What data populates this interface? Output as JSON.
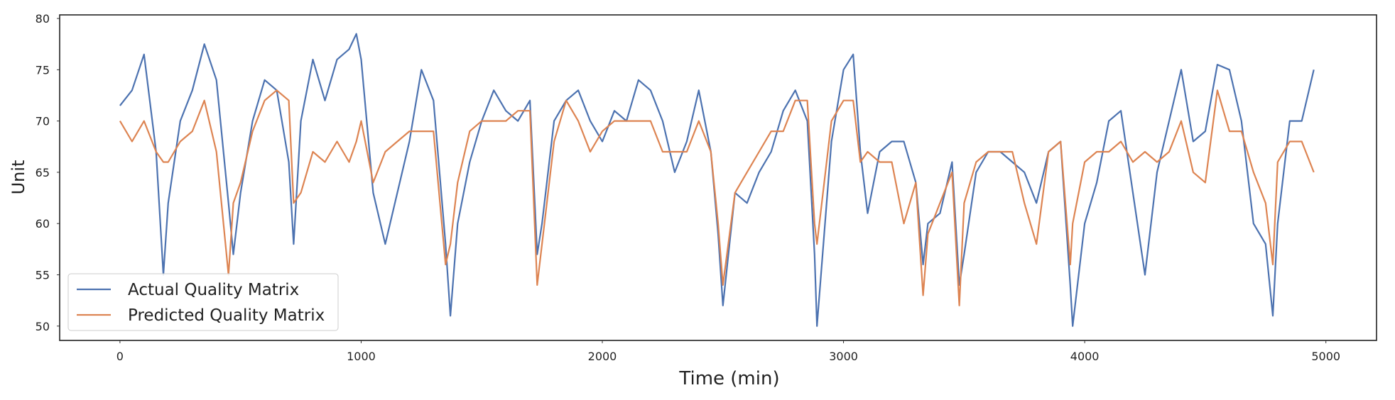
{
  "chart_data": {
    "type": "line",
    "x_label": "Time (min)",
    "y_label": "Unit",
    "x": [
      0,
      50,
      100,
      150,
      180,
      200,
      250,
      300,
      350,
      400,
      450,
      470,
      500,
      550,
      600,
      650,
      700,
      720,
      750,
      800,
      850,
      900,
      950,
      980,
      1000,
      1050,
      1100,
      1150,
      1200,
      1250,
      1300,
      1350,
      1370,
      1400,
      1450,
      1500,
      1550,
      1600,
      1650,
      1700,
      1730,
      1750,
      1800,
      1850,
      1900,
      1950,
      2000,
      2050,
      2100,
      2150,
      2200,
      2250,
      2300,
      2350,
      2400,
      2450,
      2480,
      2500,
      2550,
      2600,
      2650,
      2700,
      2750,
      2800,
      2850,
      2880,
      2890,
      2950,
      3000,
      3040,
      3070,
      3100,
      3150,
      3200,
      3250,
      3300,
      3330,
      3350,
      3400,
      3450,
      3480,
      3500,
      3550,
      3600,
      3650,
      3700,
      3750,
      3800,
      3850,
      3900,
      3940,
      3950,
      4000,
      4050,
      4100,
      4150,
      4200,
      4250,
      4300,
      4350,
      4400,
      4450,
      4500,
      4550,
      4600,
      4650,
      4700,
      4750,
      4780,
      4800,
      4850,
      4900,
      4950
    ],
    "series": [
      {
        "name": "Actual Quality Matrix",
        "color": "#4c72b0",
        "values": [
          71.5,
          73,
          76.5,
          67,
          55,
          62,
          70,
          73,
          77.5,
          74,
          62,
          57,
          63,
          70,
          74,
          73,
          66,
          58,
          70,
          76,
          72,
          76,
          77,
          78.5,
          76,
          63,
          58,
          63,
          68,
          75,
          72,
          58,
          51,
          60,
          66,
          70,
          73,
          71,
          70,
          72,
          57,
          60,
          70,
          72,
          73,
          70,
          68,
          71,
          70,
          74,
          73,
          70,
          65,
          68,
          73,
          67,
          59,
          52,
          63,
          62,
          65,
          67,
          71,
          73,
          70,
          57,
          50,
          68,
          75,
          76.5,
          67,
          61,
          67,
          68,
          68,
          64,
          56,
          60,
          61,
          66,
          54,
          57,
          65,
          67,
          67,
          66,
          65,
          62,
          67,
          68,
          54,
          50,
          60,
          64,
          70,
          71,
          63,
          55,
          65,
          70,
          75,
          68,
          69,
          75.5,
          75,
          70,
          60,
          58,
          51,
          60,
          70,
          70,
          75
        ]
      },
      {
        "name": "Predicted Quality Matrix",
        "color": "#dd8452",
        "values": [
          70,
          68,
          70,
          67,
          66,
          66,
          68,
          69,
          72,
          67,
          55,
          62,
          64,
          69,
          72,
          73,
          72,
          62,
          63,
          67,
          66,
          68,
          66,
          68,
          70,
          64,
          67,
          68,
          69,
          69,
          69,
          56,
          58,
          64,
          69,
          70,
          70,
          70,
          71,
          71,
          54,
          58,
          68,
          72,
          70,
          67,
          69,
          70,
          70,
          70,
          70,
          67,
          67,
          67,
          70,
          67,
          60,
          54,
          63,
          65,
          67,
          69,
          69,
          72,
          72,
          60,
          58,
          70,
          72,
          72,
          66,
          67,
          66,
          66,
          60,
          64,
          53,
          59,
          62,
          65,
          52,
          62,
          66,
          67,
          67,
          67,
          62,
          58,
          67,
          68,
          56,
          60,
          66,
          67,
          67,
          68,
          66,
          67,
          66,
          67,
          70,
          65,
          64,
          73,
          69,
          69,
          65,
          62,
          56,
          66,
          68,
          68,
          65
        ]
      }
    ],
    "xlim": [
      -250,
      5210
    ],
    "ylim": [
      48.6,
      80.35
    ],
    "xticks": [
      0,
      1000,
      2000,
      3000,
      4000,
      5000
    ],
    "yticks": [
      50,
      55,
      60,
      65,
      70,
      75,
      80
    ],
    "legend": "lower left"
  }
}
